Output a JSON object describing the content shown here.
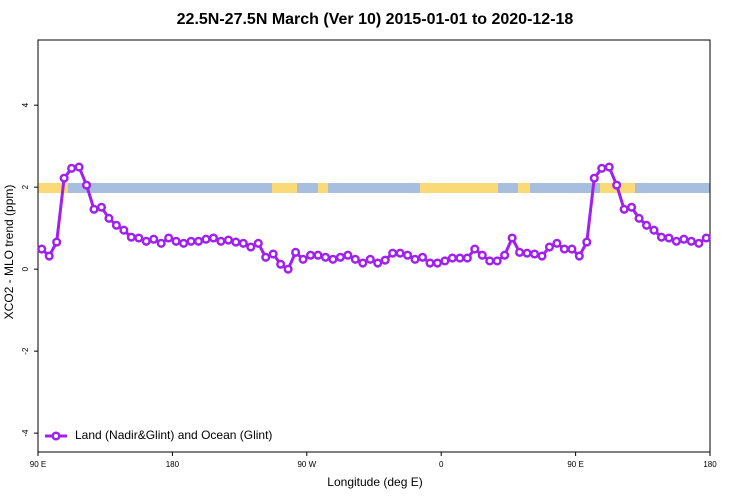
{
  "chart_data": {
    "type": "line",
    "title": "22.5N-27.5N March (Ver 10)   2015-01-01 to 2020-12-18",
    "x_label": "Longitude (deg E)",
    "y_label": "XCO2 - MLO trend (ppm)",
    "xlim": [
      90,
      540
    ],
    "ylim": [
      -4.46,
      5.59
    ],
    "xticks": [
      {
        "value": 90,
        "label": "90 E"
      },
      180,
      {
        "value": 270,
        "label": "90 W"
      },
      {
        "value": 360,
        "label": "0"
      },
      {
        "value": 450,
        "label": "90 E"
      },
      {
        "value": 540,
        "label": "180"
      }
    ],
    "yticks": [
      -4,
      -2,
      0,
      2,
      4
    ],
    "legend_position": "bottom-left",
    "x": [
      92.5,
      97.5,
      102.5,
      107.5,
      112.5,
      117.5,
      122.5,
      127.5,
      132.5,
      137.5,
      142.5,
      147.5,
      152.5,
      157.5,
      162.5,
      167.5,
      172.5,
      177.5,
      182.5,
      187.5,
      192.5,
      197.5,
      202.5,
      207.5,
      212.5,
      217.5,
      222.5,
      227.5,
      232.5,
      237.5,
      242.5,
      247.5,
      252.5,
      257.5,
      262.5,
      267.5,
      272.5,
      277.5,
      282.5,
      287.5,
      292.5,
      297.5,
      302.5,
      307.5,
      312.5,
      317.5,
      322.5,
      327.5,
      332.5,
      337.5,
      342.5,
      347.5,
      352.5,
      357.5,
      362.5,
      367.5,
      372.5,
      377.5,
      382.5,
      387.5,
      392.5,
      397.5,
      402.5,
      407.5,
      412.5,
      417.5,
      422.5,
      427.5,
      432.5,
      437.5,
      442.5,
      447.5,
      452.5,
      457.5,
      462.5,
      467.5,
      472.5,
      477.5,
      482.5,
      487.5,
      492.5,
      497.5,
      502.5,
      507.5,
      512.5,
      517.5,
      522.5,
      527.5,
      532.5,
      537.5
    ],
    "series": [
      {
        "name": "Land (Nadir&Glint) and Ocean (Glint)",
        "color": "#a020f0",
        "values": [
          0.49,
          0.32,
          0.66,
          2.22,
          2.46,
          2.49,
          2.05,
          1.46,
          1.51,
          1.24,
          1.07,
          0.95,
          0.78,
          0.76,
          0.68,
          0.73,
          0.63,
          0.76,
          0.68,
          0.63,
          0.68,
          0.68,
          0.73,
          0.76,
          0.68,
          0.71,
          0.66,
          0.63,
          0.54,
          0.63,
          0.29,
          0.37,
          0.12,
          0.0,
          0.41,
          0.24,
          0.34,
          0.34,
          0.29,
          0.24,
          0.29,
          0.34,
          0.24,
          0.15,
          0.24,
          0.15,
          0.22,
          0.39,
          0.39,
          0.34,
          0.24,
          0.29,
          0.15,
          0.15,
          0.2,
          0.27,
          0.27,
          0.27,
          0.49,
          0.34,
          0.2,
          0.2,
          0.34,
          0.76,
          0.41,
          0.39,
          0.37,
          0.32,
          0.54,
          0.63,
          0.49,
          0.49,
          0.32,
          0.66,
          2.22,
          2.46,
          2.49,
          2.05,
          1.46,
          1.51,
          1.24,
          1.07,
          0.95,
          0.78,
          0.76,
          0.68,
          0.73,
          0.68,
          0.63,
          0.76
        ]
      }
    ]
  }
}
